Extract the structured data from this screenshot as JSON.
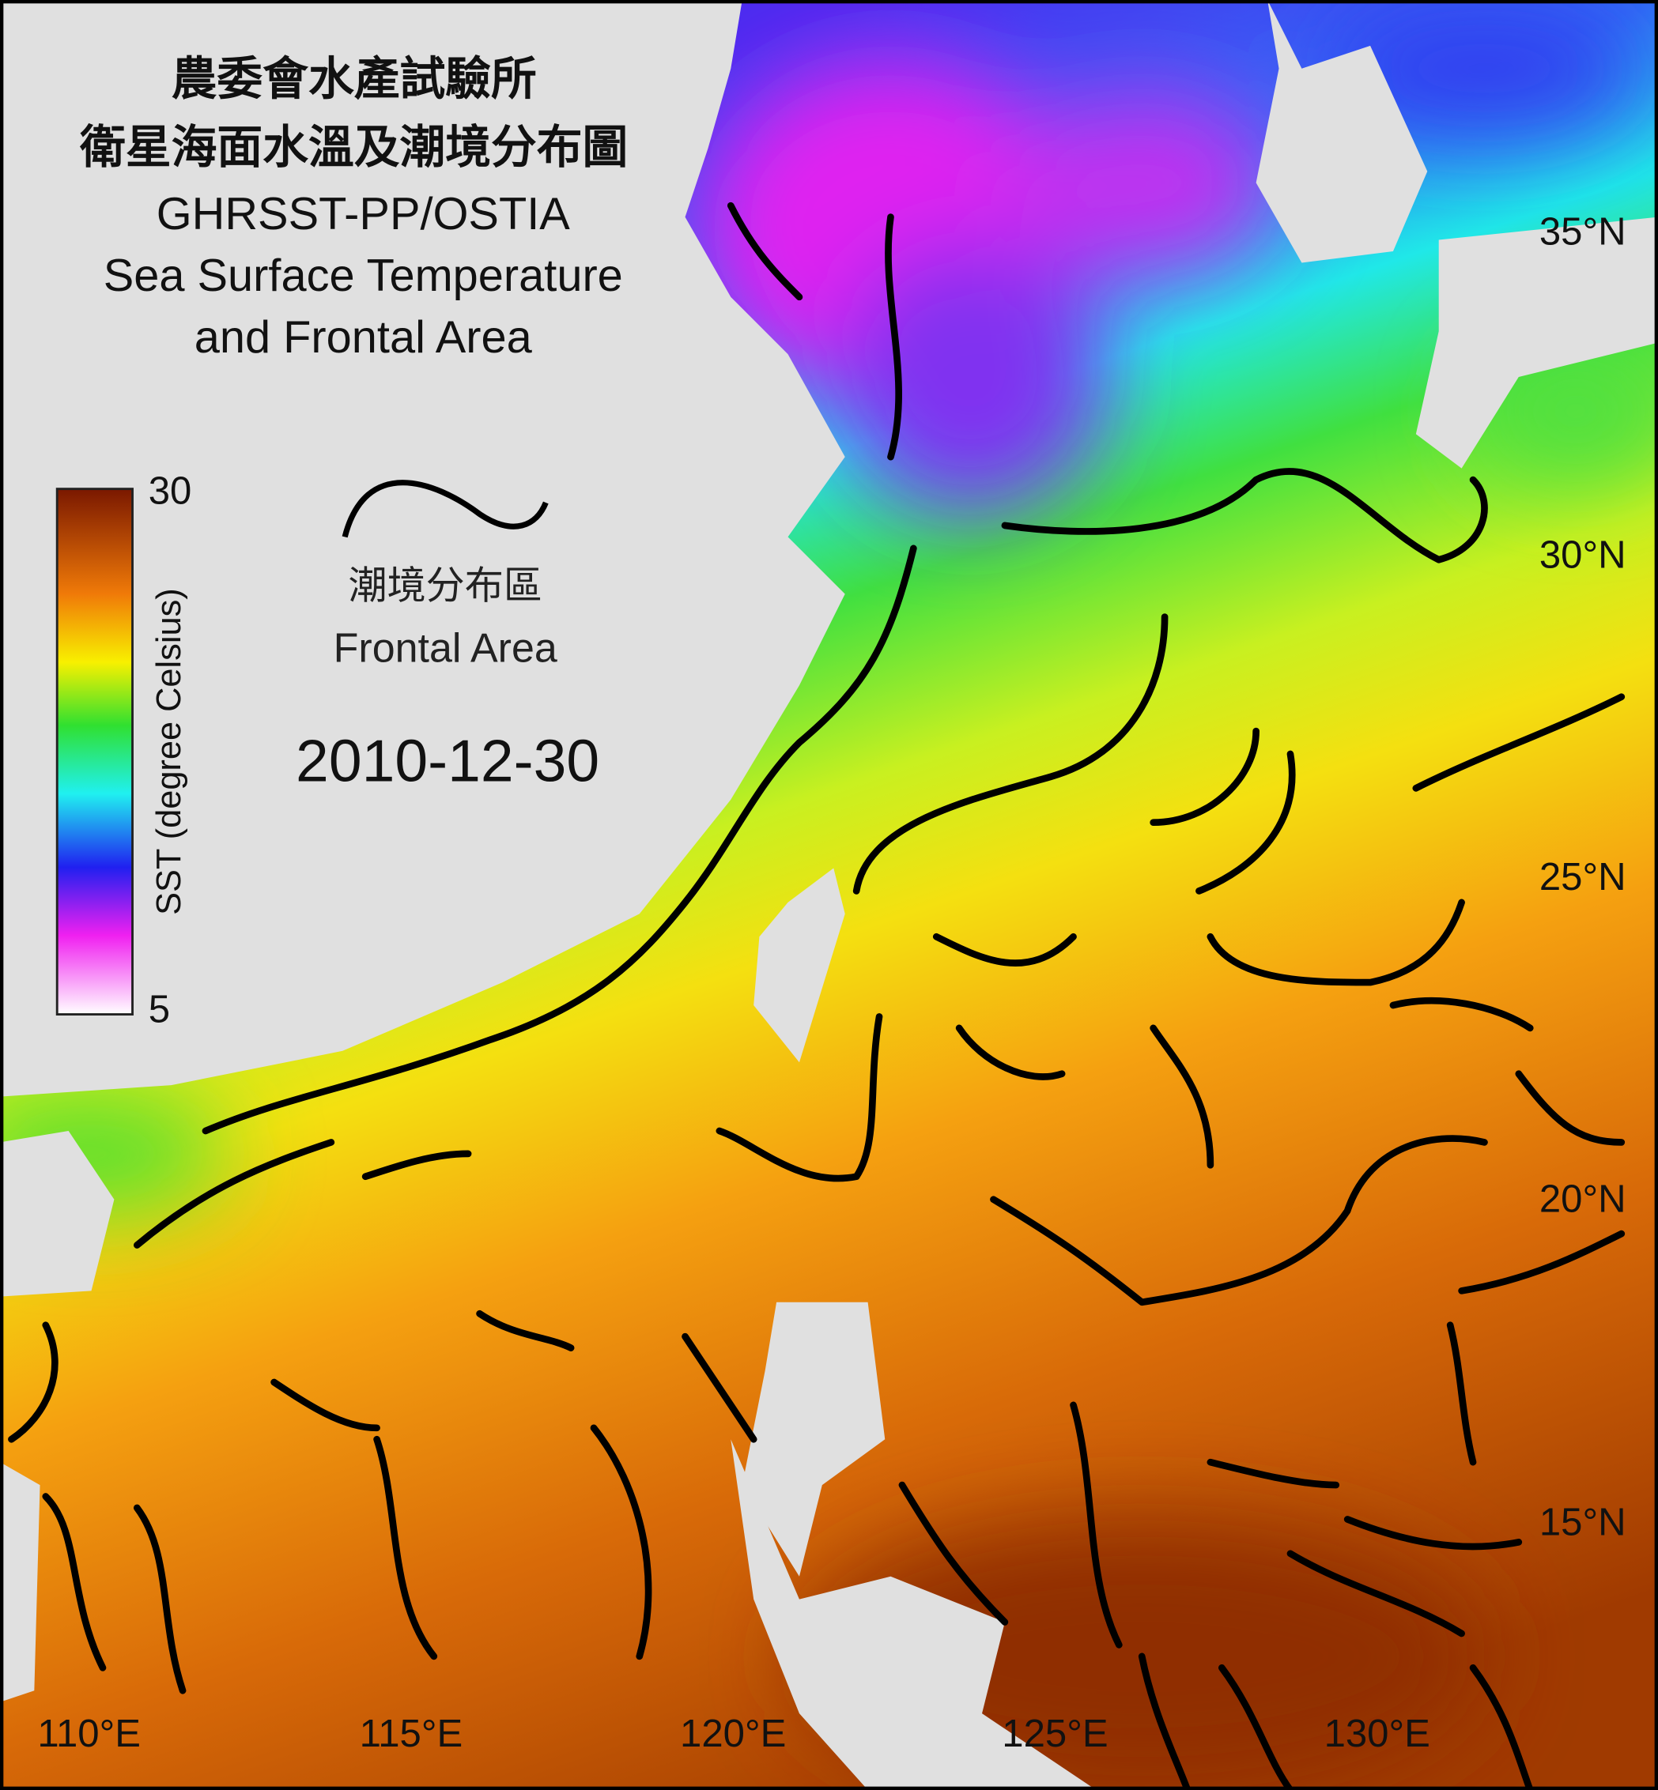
{
  "header": {
    "title_lines": [
      "農委會水產試驗所",
      "衛星海面水溫及潮境分布圖",
      "GHRSST-PP/OSTIA",
      "Sea Surface Temperature",
      "and Frontal Area"
    ]
  },
  "colorbar": {
    "title": "SST (degree Celsius)",
    "max": 30,
    "min": 5
  },
  "legend": {
    "label_zh": "潮境分布區",
    "label_en": "Frontal Area"
  },
  "date": "2010-12-30",
  "lat_labels": [
    "35°N",
    "30°N",
    "25°N",
    "20°N",
    "15°N"
  ],
  "lon_labels": [
    "110°E",
    "115°E",
    "120°E",
    "125°E",
    "130°E"
  ]
}
